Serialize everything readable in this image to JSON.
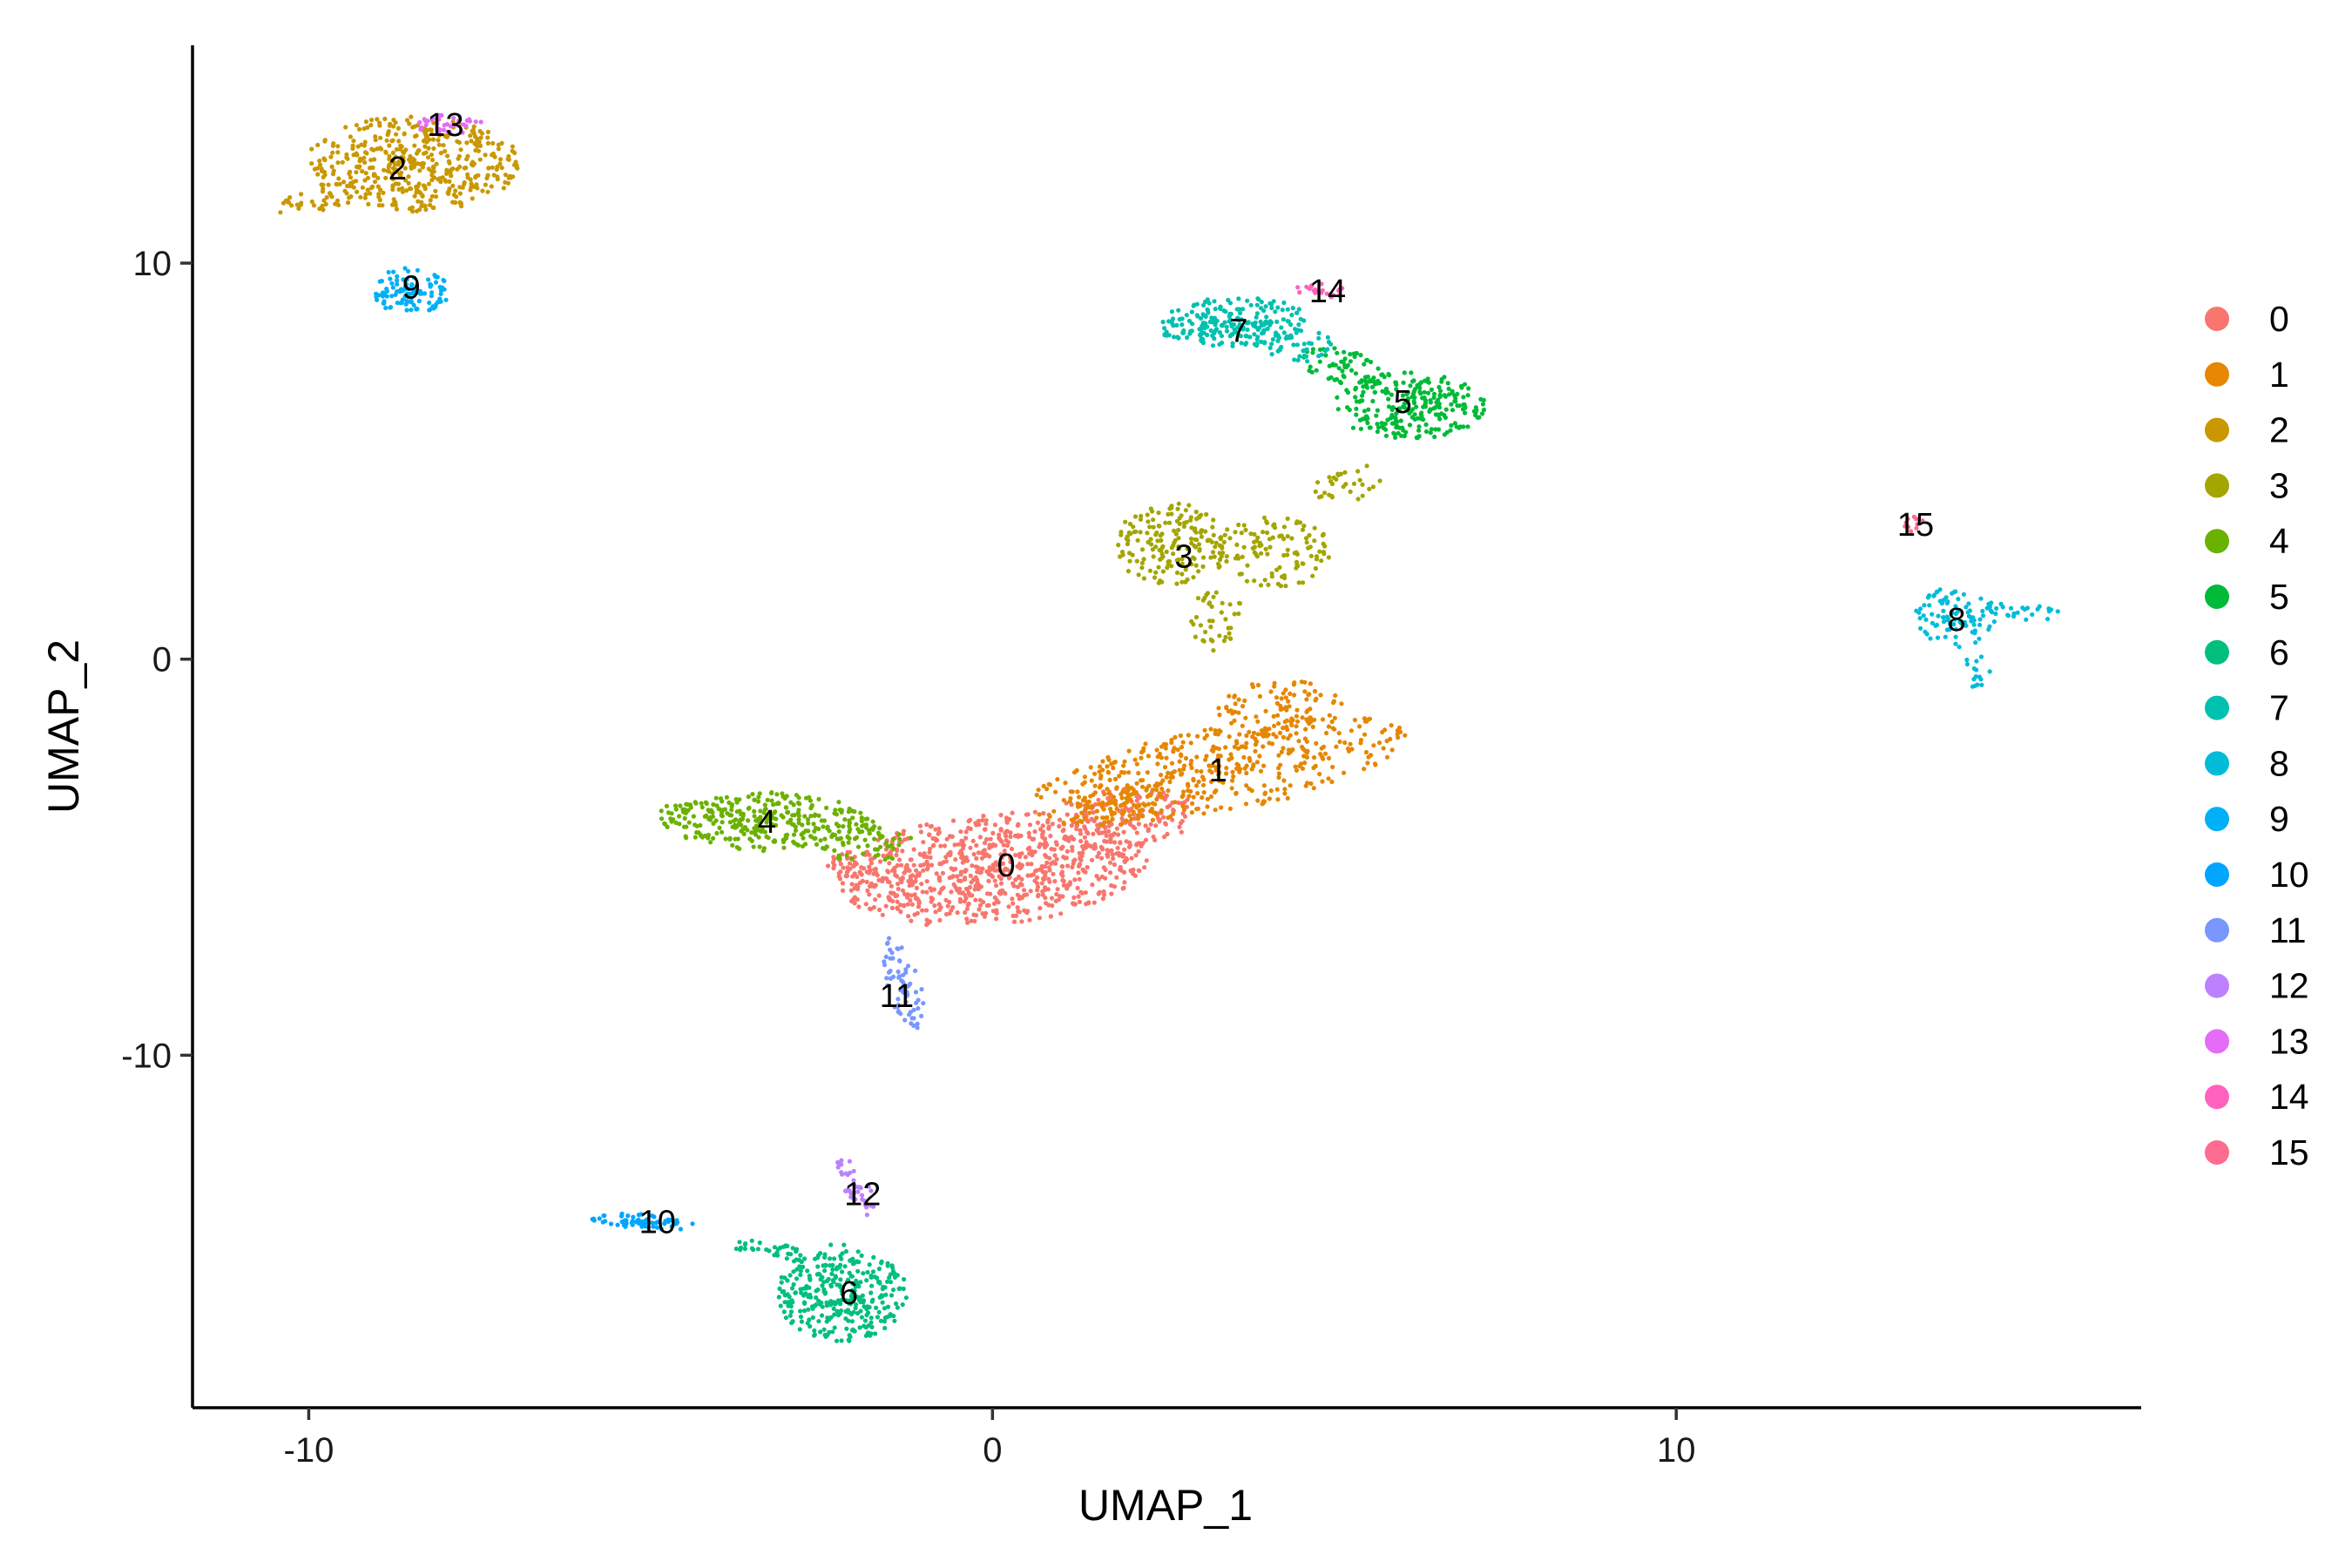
{
  "chart_data": {
    "type": "scatter",
    "title": "",
    "xlabel": "UMAP_1",
    "ylabel": "UMAP_2",
    "xlim": [
      -11.7,
      16.8
    ],
    "ylim": [
      -18.9,
      15.5
    ],
    "x_ticks": [
      -10,
      0,
      10
    ],
    "x_tick_labels": [
      "-10",
      "0",
      "10"
    ],
    "y_ticks": [
      -10,
      0,
      10
    ],
    "y_tick_labels": [
      "-10",
      "0",
      "10"
    ],
    "grid": false,
    "legend_position": "right",
    "series": [
      {
        "name": "0",
        "color": "#F8766D",
        "label_pos": [
          0.2,
          -5.2
        ],
        "shapes": [
          {
            "c": [
              0.0,
              -5.3
            ],
            "r": [
              2.3,
              1.4
            ],
            "rot": 12,
            "n": 760
          },
          {
            "c": [
              1.8,
              -4.1
            ],
            "r": [
              1.3,
              0.8
            ],
            "rot": 20,
            "n": 160
          },
          {
            "c": [
              -1.7,
              -5.3
            ],
            "r": [
              0.8,
              0.6
            ],
            "rot": 0,
            "n": 60
          }
        ]
      },
      {
        "name": "1",
        "color": "#E58700",
        "label_pos": [
          3.3,
          -2.8
        ],
        "shapes": [
          {
            "c": [
              3.3,
              -2.8
            ],
            "r": [
              2.9,
              1.05
            ],
            "rot": 20,
            "n": 460
          },
          {
            "c": [
              4.2,
              -1.2
            ],
            "r": [
              1.0,
              0.7
            ],
            "rot": 0,
            "n": 80
          },
          {
            "c": [
              1.8,
              -3.6
            ],
            "r": [
              0.8,
              0.6
            ],
            "rot": 20,
            "n": 60
          }
        ]
      },
      {
        "name": "2",
        "color": "#C99800",
        "label_pos": [
          -8.7,
          12.4
        ],
        "shapes": [
          {
            "c": [
              -8.5,
              12.5
            ],
            "r": [
              1.6,
              1.2
            ],
            "rot": 0,
            "n": 440
          },
          {
            "c": [
              -9.8,
              11.6
            ],
            "r": [
              0.7,
              0.35
            ],
            "rot": 25,
            "n": 40
          }
        ]
      },
      {
        "name": "3",
        "color": "#A3A500",
        "label_pos": [
          2.8,
          2.6
        ],
        "shapes": [
          {
            "c": [
              2.6,
              2.9
            ],
            "r": [
              0.8,
              1.05
            ],
            "rot": 0,
            "n": 170
          },
          {
            "c": [
              4.1,
              2.7
            ],
            "r": [
              0.9,
              0.9
            ],
            "rot": 0,
            "n": 120
          },
          {
            "c": [
              3.3,
              1.0
            ],
            "r": [
              0.4,
              0.8
            ],
            "rot": 0,
            "n": 40
          },
          {
            "c": [
              5.2,
              4.4
            ],
            "r": [
              0.6,
              0.4
            ],
            "rot": 40,
            "n": 30
          }
        ]
      },
      {
        "name": "4",
        "color": "#6BB100",
        "label_pos": [
          -3.3,
          -4.1
        ],
        "shapes": [
          {
            "c": [
              -3.3,
              -4.1
            ],
            "r": [
              1.6,
              0.75
            ],
            "rot": -5,
            "n": 330
          },
          {
            "c": [
              -1.8,
              -4.7
            ],
            "r": [
              0.7,
              0.45
            ],
            "rot": 0,
            "n": 40
          }
        ]
      },
      {
        "name": "5",
        "color": "#00BA38",
        "label_pos": [
          6.0,
          6.5
        ],
        "shapes": [
          {
            "c": [
              6.1,
              6.4
            ],
            "r": [
              1.1,
              0.85
            ],
            "rot": 0,
            "n": 250
          },
          {
            "c": [
              5.1,
              7.4
            ],
            "r": [
              0.7,
              0.4
            ],
            "rot": -30,
            "n": 60
          }
        ]
      },
      {
        "name": "6",
        "color": "#00BF7D",
        "label_pos": [
          -2.1,
          -16.0
        ],
        "shapes": [
          {
            "c": [
              -2.2,
              -16.0
            ],
            "r": [
              0.95,
              1.25
            ],
            "rot": 0,
            "n": 330
          },
          {
            "c": [
              -3.3,
              -14.9
            ],
            "r": [
              0.55,
              0.2
            ],
            "rot": -15,
            "n": 30
          }
        ]
      },
      {
        "name": "7",
        "color": "#00C0AF",
        "label_pos": [
          3.6,
          8.3
        ],
        "shapes": [
          {
            "c": [
              3.5,
              8.5
            ],
            "r": [
              1.1,
              0.65
            ],
            "rot": 5,
            "n": 220
          },
          {
            "c": [
              4.5,
              7.9
            ],
            "r": [
              0.5,
              0.4
            ],
            "rot": 0,
            "n": 40
          }
        ]
      },
      {
        "name": "8",
        "color": "#00BCD8",
        "label_pos": [
          14.1,
          1.0
        ],
        "shapes": [
          {
            "c": [
              14.1,
              1.1
            ],
            "r": [
              0.6,
              0.8
            ],
            "rot": 0,
            "n": 90
          },
          {
            "c": [
              15.0,
              1.2
            ],
            "r": [
              0.7,
              0.2
            ],
            "rot": -5,
            "n": 25
          },
          {
            "c": [
              14.4,
              -0.3
            ],
            "r": [
              0.2,
              0.5
            ],
            "rot": 0,
            "n": 15
          }
        ]
      },
      {
        "name": "9",
        "color": "#00B0F6",
        "label_pos": [
          -8.5,
          9.4
        ],
        "shapes": [
          {
            "c": [
              -8.5,
              9.3
            ],
            "r": [
              0.55,
              0.6
            ],
            "rot": 0,
            "n": 110
          }
        ]
      },
      {
        "name": "10",
        "color": "#00A5FF",
        "label_pos": [
          -4.9,
          -14.2
        ],
        "shapes": [
          {
            "c": [
              -5.1,
              -14.2
            ],
            "r": [
              0.8,
              0.18
            ],
            "rot": -8,
            "n": 60
          }
        ]
      },
      {
        "name": "11",
        "color": "#7997FF",
        "label_pos": [
          -1.4,
          -8.5
        ],
        "shapes": [
          {
            "c": [
              -1.3,
              -8.2
            ],
            "r": [
              0.25,
              1.2
            ],
            "rot": 8,
            "n": 70
          }
        ]
      },
      {
        "name": "12",
        "color": "#BB81FF",
        "label_pos": [
          -1.9,
          -13.5
        ],
        "shapes": [
          {
            "c": [
              -2.0,
              -13.3
            ],
            "r": [
              0.2,
              0.8
            ],
            "rot": 15,
            "n": 40
          }
        ]
      },
      {
        "name": "13",
        "color": "#E46CF6",
        "label_pos": [
          -8.0,
          13.5
        ],
        "shapes": [
          {
            "c": [
              -7.9,
              13.5
            ],
            "r": [
              0.55,
              0.25
            ],
            "rot": 0,
            "n": 35
          }
        ]
      },
      {
        "name": "14",
        "color": "#FF62BC",
        "label_pos": [
          4.9,
          9.3
        ],
        "shapes": [
          {
            "c": [
              4.8,
              9.3
            ],
            "r": [
              0.4,
              0.18
            ],
            "rot": 0,
            "n": 22
          }
        ]
      },
      {
        "name": "15",
        "color": "#FF6C91",
        "label_pos": [
          13.5,
          3.4
        ],
        "shapes": [
          {
            "c": [
              13.5,
              3.4
            ],
            "r": [
              0.2,
              0.2
            ],
            "rot": 0,
            "n": 10
          }
        ]
      }
    ]
  }
}
